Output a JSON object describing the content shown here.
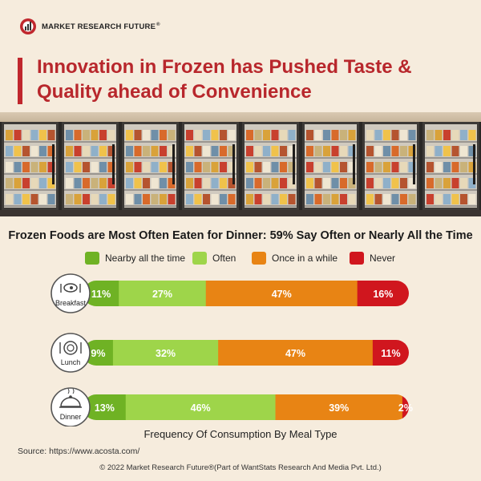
{
  "brand": {
    "name": "MARKET RESEARCH FUTURE",
    "reg": "®"
  },
  "title": "Innovation in Frozen has Pushed Taste & Quality ahead of Convenience",
  "colors": {
    "accent": "#c0272d",
    "nearby_all_the_time": "#6fb224",
    "often": "#9ed54a",
    "once_in_a_while": "#e88414",
    "never": "#d0161e",
    "background": "#f6ecdd"
  },
  "chart_data": {
    "type": "bar",
    "orientation": "horizontal",
    "stacked": true,
    "percent_stacked": true,
    "title": "Frozen Foods are Most Often Eaten for Dinner: 59% Say Often or Nearly All the Time",
    "xlabel": "Frequency Of Consumption By Meal Type",
    "ylabel": "",
    "categories": [
      "Breakfast",
      "Lunch",
      "Dinner"
    ],
    "category_icons": [
      "breakfast-icon",
      "lunch-icon",
      "dinner-icon"
    ],
    "series": [
      {
        "name": "Nearby all the time",
        "color": "#6fb224",
        "values": [
          11,
          9,
          13
        ]
      },
      {
        "name": "Often",
        "color": "#9ed54a",
        "values": [
          27,
          32,
          46
        ]
      },
      {
        "name": "Once in a while",
        "color": "#e88414",
        "values": [
          47,
          47,
          39
        ]
      },
      {
        "name": "Never",
        "color": "#d0161e",
        "values": [
          16,
          11,
          2
        ]
      }
    ],
    "value_suffix": "%",
    "legend_position": "top",
    "grid": false
  },
  "caption": "Frequency Of Consumption By Meal Type",
  "source": "Source: https://www.acosta.com/",
  "copyright": "© 2022 Market Research Future®(Part of WantStats Research And Media Pvt. Ltd.)"
}
